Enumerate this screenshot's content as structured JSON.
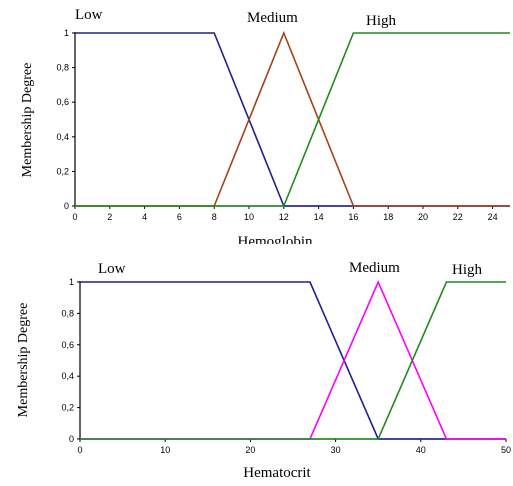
{
  "chart_data": [
    {
      "type": "line",
      "xlabel": "Hemoglobin",
      "ylabel": "Membership Degree",
      "xlim": [
        0,
        25
      ],
      "ylim": [
        0,
        1
      ],
      "x_ticks": [
        "0",
        "2",
        "4",
        "6",
        "8",
        "10",
        "12",
        "14",
        "16",
        "18",
        "20",
        "22",
        "24"
      ],
      "y_ticks": [
        "0",
        "0,2",
        "0,4",
        "0,6",
        "0,8",
        "1"
      ],
      "grid": false,
      "legend": "none",
      "series": [
        {
          "name": "Low",
          "color": "#1f1f8f",
          "points": [
            [
              0,
              1
            ],
            [
              8,
              1
            ],
            [
              12,
              0
            ],
            [
              25,
              0
            ]
          ]
        },
        {
          "name": "Medium",
          "color": "#a0441a",
          "points": [
            [
              0,
              0
            ],
            [
              8,
              0
            ],
            [
              12,
              1
            ],
            [
              16,
              0
            ],
            [
              25,
              0
            ]
          ]
        },
        {
          "name": "High",
          "color": "#1f8a1f",
          "points": [
            [
              0,
              0
            ],
            [
              12,
              0
            ],
            [
              16,
              1
            ],
            [
              25,
              1
            ]
          ]
        }
      ]
    },
    {
      "type": "line",
      "xlabel": "Hematocrit",
      "ylabel": "Membership Degree",
      "xlim": [
        0,
        50
      ],
      "ylim": [
        0,
        1
      ],
      "x_ticks": [
        "0",
        "10",
        "20",
        "30",
        "40",
        "50"
      ],
      "y_ticks": [
        "0",
        "0,2",
        "0,4",
        "0,6",
        "0,8",
        "1"
      ],
      "grid": false,
      "legend": "none",
      "series": [
        {
          "name": "Low",
          "color": "#1f1f8f",
          "points": [
            [
              0,
              1
            ],
            [
              27,
              1
            ],
            [
              35,
              0
            ],
            [
              50,
              0
            ]
          ]
        },
        {
          "name": "Medium",
          "color": "#ff00ff",
          "points": [
            [
              0,
              0
            ],
            [
              27,
              0
            ],
            [
              35,
              1
            ],
            [
              43,
              0
            ],
            [
              50,
              0
            ]
          ]
        },
        {
          "name": "High",
          "color": "#1f8a1f",
          "points": [
            [
              0,
              0
            ],
            [
              35,
              0
            ],
            [
              43,
              1
            ],
            [
              50,
              1
            ]
          ]
        }
      ]
    }
  ]
}
